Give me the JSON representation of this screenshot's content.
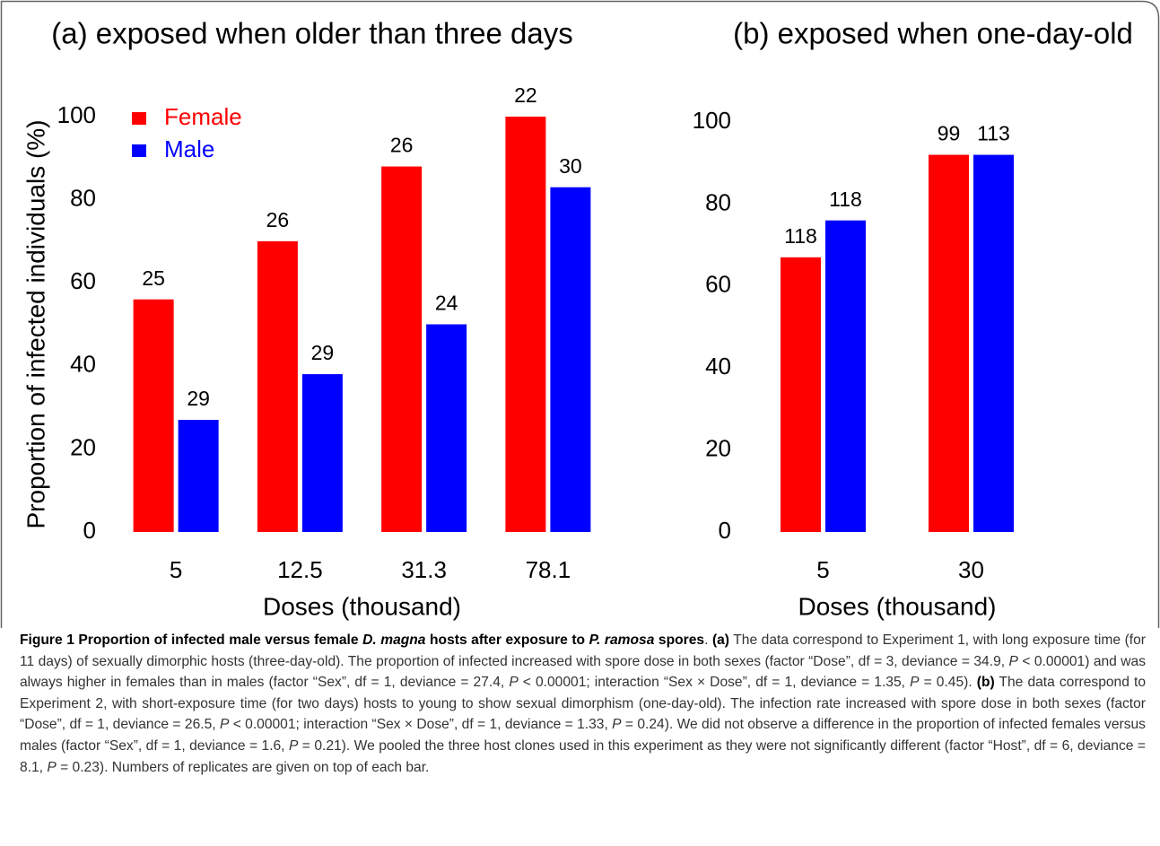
{
  "chart_data": [
    {
      "type": "bar",
      "title": "(a) exposed when older than three days",
      "xlabel": "Doses (thousand)",
      "ylabel": "Proportion of infected individuals (%)",
      "categories": [
        "5",
        "12.5",
        "31.3",
        "78.1"
      ],
      "series": [
        {
          "name": "Female",
          "color": "#ff0000",
          "values": [
            56,
            70,
            88,
            100
          ],
          "replicates": [
            25,
            26,
            26,
            22
          ]
        },
        {
          "name": "Male",
          "color": "#0000ff",
          "values": [
            27,
            38,
            50,
            83
          ],
          "replicates": [
            29,
            29,
            24,
            30
          ]
        }
      ],
      "ylim": [
        0,
        100
      ],
      "yticks": [
        0,
        20,
        40,
        60,
        80,
        100
      ],
      "legend": "upper left"
    },
    {
      "type": "bar",
      "title": "(b) exposed when one-day-old",
      "xlabel": "Doses (thousand)",
      "categories": [
        "5",
        "30"
      ],
      "series": [
        {
          "color": "#ff0000",
          "values": [
            67,
            92
          ],
          "replicates": [
            118,
            99
          ]
        },
        {
          "color": "#0000ff",
          "values": [
            76,
            92
          ],
          "replicates": [
            118,
            113
          ]
        }
      ],
      "ylim": [
        0,
        100
      ],
      "yticks": [
        0,
        20,
        40,
        60,
        80,
        100
      ]
    }
  ],
  "caption": [
    "Figure 1 Proportion of infected male versus female ",
    "D. magna",
    " hosts after exposure to ",
    "P. ramosa",
    " spores",
    ". ",
    "(a)",
    " The data correspond to Experiment 1, with long exposure time (for 11 days) of sexually dimorphic hosts (three-day-old). The proportion of infected increased with spore dose in both sexes (factor “Dose”, df = 3, deviance = 34.9, ",
    "P",
    " < 0.00001) and was always higher in females than in males (factor “Sex”, df = 1, deviance = 27.4, ",
    "P",
    " < 0.00001; interaction “Sex × Dose”, df = 1, deviance = 1.35, ",
    "P",
    " = 0.45). ",
    "(b)",
    " The data correspond to Experiment 2, with short-exposure time (for two days) hosts to young to show sexual dimorphism (one-day-old). The infection rate increased with spore dose in both sexes (factor “Dose”, df = 1, deviance = 26.5, ",
    "P",
    " < 0.00001; interaction “Sex × Dose”, df = 1, deviance = 1.33, ",
    "P",
    " = 0.24). We did not observe a difference in the proportion of infected females versus males (factor “Sex”, df = 1, deviance = 1.6, ",
    "P",
    " = 0.21). We pooled the three host clones used in this experiment as they were not significantly different (factor “Host”, df = 6, deviance = 8.1, ",
    "P",
    " = 0.23). Numbers of replicates are given on top of each bar."
  ]
}
